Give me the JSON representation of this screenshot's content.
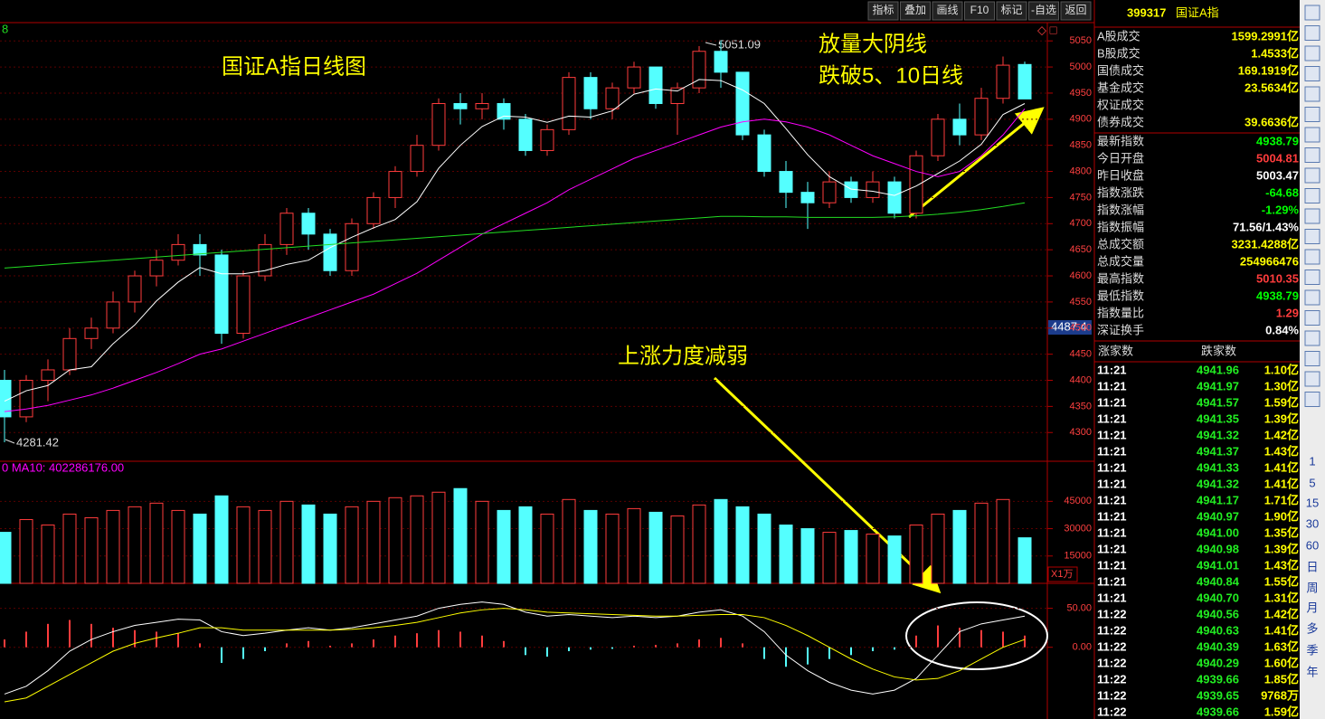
{
  "toolbar": [
    "指标",
    "叠加",
    "画线",
    "F10",
    "标记",
    "-自选",
    "返回"
  ],
  "chart_data": {
    "type": "candlestick",
    "title": "国证A指日线图",
    "annotations": [
      "放量大阴线",
      "跌破5、10日线",
      "上涨力度减弱"
    ],
    "period_label": "8",
    "high_label": "5051.09",
    "low_label": "4281.42",
    "cursor_price": "4487.4",
    "up_color": "#ff3c3c",
    "down_color": "#54ffff",
    "open": [
      4400,
      4330,
      4400,
      4420,
      4480,
      4500,
      4550,
      4600,
      4630,
      4660,
      4640,
      4490,
      4600,
      4660,
      4720,
      4680,
      4610,
      4700,
      4750,
      4800,
      4850,
      4930,
      4920,
      4930,
      4900,
      4840,
      4880,
      4980,
      4920,
      4960,
      5000,
      4930,
      4960,
      5030,
      4990,
      4870,
      4800,
      4760,
      4740,
      4780,
      4750,
      4780,
      4720,
      4830,
      4900,
      4870,
      4940,
      5004.81
    ],
    "close": [
      4330,
      4400,
      4420,
      4480,
      4500,
      4550,
      4600,
      4630,
      4660,
      4640,
      4490,
      4600,
      4660,
      4720,
      4680,
      4610,
      4700,
      4750,
      4800,
      4850,
      4930,
      4920,
      4930,
      4900,
      4840,
      4880,
      4980,
      4920,
      4960,
      5000,
      4930,
      4960,
      5030,
      4990,
      4870,
      4800,
      4760,
      4740,
      4780,
      4750,
      4780,
      4720,
      4830,
      4900,
      4870,
      4940,
      5003.47,
      4938.79
    ],
    "high": [
      4420,
      4410,
      4440,
      4500,
      4520,
      4570,
      4610,
      4650,
      4680,
      4680,
      4650,
      4610,
      4680,
      4730,
      4730,
      4690,
      4710,
      4760,
      4810,
      4870,
      4940,
      4950,
      4950,
      4940,
      4910,
      4890,
      4990,
      4990,
      4970,
      5010,
      5000,
      4970,
      5040,
      5051.09,
      4990,
      4880,
      4820,
      4780,
      4800,
      4790,
      4800,
      4790,
      4840,
      4910,
      4930,
      4960,
      5020,
      5010.35
    ],
    "low": [
      4281.42,
      4320,
      4360,
      4410,
      4460,
      4490,
      4530,
      4580,
      4620,
      4600,
      4470,
      4480,
      4590,
      4640,
      4650,
      4600,
      4600,
      4690,
      4730,
      4790,
      4840,
      4890,
      4900,
      4880,
      4830,
      4830,
      4870,
      4900,
      4900,
      4950,
      4920,
      4870,
      4950,
      4960,
      4860,
      4790,
      4730,
      4690,
      4730,
      4740,
      4740,
      4710,
      4710,
      4820,
      4850,
      4860,
      4930,
      4938.79
    ],
    "ma": [
      {
        "color": "#ffffff",
        "values": [
          4360,
          4380,
          4390,
          4420,
          4426,
          4470,
          4506,
          4552,
          4588,
          4616,
          4604,
          4604,
          4610,
          4622,
          4630,
          4654,
          4674,
          4692,
          4708,
          4742,
          4806,
          4850,
          4886,
          4906,
          4904,
          4894,
          4906,
          4904,
          4916,
          4948,
          4958,
          4954,
          4976,
          4974,
          4956,
          4930,
          4882,
          4832,
          4790,
          4766,
          4762,
          4754,
          4772,
          4796,
          4820,
          4852,
          4909,
          4930
        ]
      },
      {
        "color": "#ff00ff",
        "values": [
          4340,
          4345,
          4352,
          4362,
          4372,
          4385,
          4400,
          4415,
          4432,
          4450,
          4460,
          4475,
          4490,
          4505,
          4520,
          4535,
          4550,
          4565,
          4585,
          4605,
          4630,
          4655,
          4680,
          4700,
          4720,
          4740,
          4765,
          4785,
          4805,
          4825,
          4840,
          4855,
          4870,
          4885,
          4895,
          4900,
          4895,
          4885,
          4870,
          4850,
          4830,
          4815,
          4800,
          4790,
          4800,
          4830,
          4870,
          4920
        ]
      },
      {
        "color": "#22dd22",
        "values": [
          4615,
          4618,
          4621,
          4624,
          4627,
          4630,
          4633,
          4636,
          4639,
          4642,
          4645,
          4648,
          4651,
          4654,
          4657,
          4660,
          4663,
          4666,
          4669,
          4672,
          4675,
          4678,
          4681,
          4684,
          4687,
          4690,
          4693,
          4696,
          4699,
          4702,
          4705,
          4708,
          4711,
          4714,
          4714,
          4713,
          4713,
          4712,
          4712,
          4712,
          4712,
          4713,
          4715,
          4718,
          4722,
          4727,
          4733,
          4740
        ]
      }
    ],
    "ylim": [
      4245,
      5085
    ],
    "yticks": [
      4300,
      4350,
      4400,
      4450,
      4500,
      4550,
      4600,
      4650,
      4700,
      4750,
      4800,
      4850,
      4900,
      4950,
      5000,
      5050
    ],
    "volume": {
      "label": "0 MA10: 402286176.00",
      "unit": "X1万",
      "values": [
        28000,
        35000,
        32000,
        38000,
        36000,
        40000,
        42000,
        44000,
        40000,
        38000,
        48000,
        42000,
        40000,
        45000,
        43000,
        38000,
        42000,
        45000,
        47000,
        48000,
        50000,
        52000,
        45000,
        40000,
        42000,
        38000,
        46000,
        40000,
        38000,
        41000,
        39000,
        37000,
        43000,
        46000,
        42000,
        38000,
        32000,
        30000,
        28000,
        29000,
        27000,
        26000,
        32000,
        38000,
        40000,
        44000,
        46000,
        25000
      ],
      "ylim": [
        0,
        67000
      ],
      "yticks": [
        15000,
        30000,
        45000
      ]
    },
    "macd": {
      "hist": [
        10,
        20,
        30,
        35,
        30,
        25,
        22,
        20,
        18,
        5,
        -20,
        -15,
        -5,
        5,
        8,
        2,
        5,
        10,
        15,
        18,
        22,
        20,
        15,
        8,
        -10,
        -12,
        -5,
        -3,
        -2,
        2,
        3,
        5,
        10,
        12,
        5,
        -15,
        -25,
        -22,
        -15,
        -10,
        -5,
        -3,
        15,
        28,
        25,
        22,
        20,
        15
      ],
      "dif": [
        -60,
        -50,
        -30,
        -5,
        10,
        20,
        28,
        32,
        36,
        35,
        20,
        15,
        18,
        22,
        25,
        22,
        25,
        30,
        35,
        40,
        50,
        55,
        58,
        55,
        45,
        40,
        42,
        40,
        38,
        40,
        38,
        40,
        45,
        48,
        40,
        20,
        -10,
        -30,
        -45,
        -55,
        -60,
        -55,
        -40,
        -10,
        20,
        30,
        35,
        40
      ],
      "dea": [
        -70,
        -65,
        -50,
        -35,
        -20,
        -5,
        5,
        12,
        18,
        25,
        25,
        22,
        22,
        22,
        22,
        22,
        23,
        25,
        28,
        32,
        38,
        44,
        48,
        50,
        48,
        45,
        44,
        43,
        42,
        41,
        40,
        40,
        41,
        42,
        42,
        38,
        28,
        15,
        0,
        -15,
        -28,
        -38,
        -42,
        -40,
        -30,
        -15,
        0,
        10
      ],
      "dif_color": "#ffffff",
      "dea_color": "#ffff00",
      "ylim": [
        -92,
        82
      ],
      "yticks": [
        {
          "value": 50,
          "label": "50.00"
        },
        {
          "value": 0,
          "label": "0.00"
        }
      ]
    }
  },
  "quote": {
    "code": "399317",
    "name": "国证A指",
    "rows": [
      {
        "label": "A股成交",
        "value": "1599.2991亿",
        "color": "#ffff00"
      },
      {
        "label": "B股成交",
        "value": "1.4533亿",
        "color": "#ffff00"
      },
      {
        "label": "国债成交",
        "value": "169.1919亿",
        "color": "#ffff00"
      },
      {
        "label": "基金成交",
        "value": "23.5634亿",
        "color": "#ffff00"
      },
      {
        "label": "权证成交",
        "value": "",
        "color": "#ffff00"
      },
      {
        "label": "债券成交",
        "value": "39.6636亿",
        "color": "#ffff00"
      },
      {
        "label": "最新指数",
        "value": "4938.79",
        "color": "#00ff00"
      },
      {
        "label": "今日开盘",
        "value": "5004.81",
        "color": "#ff3c3c"
      },
      {
        "label": "昨日收盘",
        "value": "5003.47",
        "color": "#ffffff"
      },
      {
        "label": "指数涨跌",
        "value": "-64.68",
        "color": "#00ff00"
      },
      {
        "label": "指数涨幅",
        "value": "-1.29%",
        "color": "#00ff00"
      },
      {
        "label": "指数振幅",
        "value": "71.56/1.43%",
        "color": "#ffffff"
      },
      {
        "label": "总成交额",
        "value": "3231.4288亿",
        "color": "#ffff00"
      },
      {
        "label": "总成交量",
        "value": "254966476",
        "color": "#ffff00"
      },
      {
        "label": "最高指数",
        "value": "5010.35",
        "color": "#ff3c3c"
      },
      {
        "label": "最低指数",
        "value": "4938.79",
        "color": "#00ff00"
      },
      {
        "label": "指数量比",
        "value": "1.29",
        "color": "#ff3c3c"
      },
      {
        "label": "深证换手",
        "value": "0.84%",
        "color": "#ffffff"
      }
    ]
  },
  "ticks": {
    "headers": [
      "涨家数",
      "跌家数"
    ],
    "rows": [
      [
        "11:21",
        "4941.96",
        "1.10亿"
      ],
      [
        "11:21",
        "4941.97",
        "1.30亿"
      ],
      [
        "11:21",
        "4941.57",
        "1.59亿"
      ],
      [
        "11:21",
        "4941.35",
        "1.39亿"
      ],
      [
        "11:21",
        "4941.32",
        "1.42亿"
      ],
      [
        "11:21",
        "4941.37",
        "1.43亿"
      ],
      [
        "11:21",
        "4941.33",
        "1.41亿"
      ],
      [
        "11:21",
        "4941.32",
        "1.41亿"
      ],
      [
        "11:21",
        "4941.17",
        "1.71亿"
      ],
      [
        "11:21",
        "4940.97",
        "1.90亿"
      ],
      [
        "11:21",
        "4941.00",
        "1.35亿"
      ],
      [
        "11:21",
        "4940.98",
        "1.39亿"
      ],
      [
        "11:21",
        "4941.01",
        "1.43亿"
      ],
      [
        "11:21",
        "4940.84",
        "1.55亿"
      ],
      [
        "11:21",
        "4940.70",
        "1.31亿"
      ],
      [
        "11:22",
        "4940.56",
        "1.42亿"
      ],
      [
        "11:22",
        "4940.63",
        "1.41亿"
      ],
      [
        "11:22",
        "4940.39",
        "1.63亿"
      ],
      [
        "11:22",
        "4940.29",
        "1.60亿"
      ],
      [
        "11:22",
        "4939.66",
        "1.85亿"
      ],
      [
        "11:22",
        "4939.65",
        "9768万"
      ],
      [
        "11:22",
        "4939.66",
        "1.59亿"
      ]
    ]
  },
  "sidebar": [
    "1",
    "5",
    "15",
    "30",
    "60",
    "日",
    "周",
    "月",
    "多",
    "季",
    "年"
  ]
}
